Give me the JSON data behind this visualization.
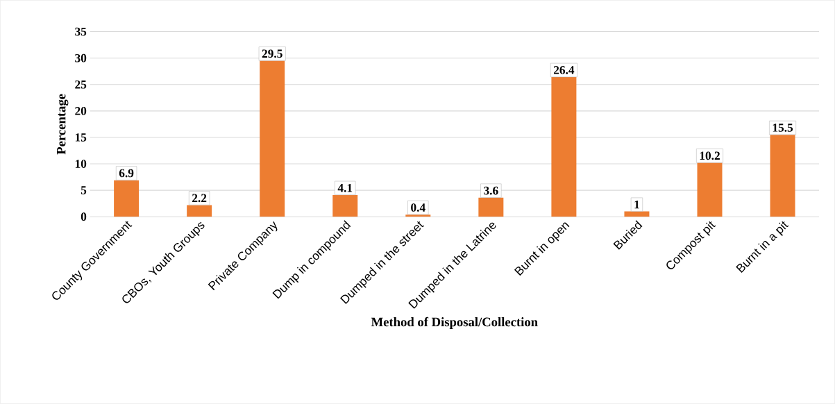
{
  "chart_data": {
    "type": "bar",
    "xlabel": "Method of Disposal/Collection",
    "ylabel": "Percentage",
    "categories": [
      "County Government",
      "CBOs, Youth Groups",
      "Private Company",
      "Dump in compound",
      "Dumped in the street",
      "Dumped in the Latrine",
      "Burnt in open",
      "Buried",
      "Compost pit",
      "Burnt in a pit"
    ],
    "values": [
      6.9,
      2.2,
      29.5,
      4.1,
      0.4,
      3.6,
      26.4,
      1,
      10.2,
      15.5
    ],
    "color": "#ed7d31",
    "ylim": [
      0,
      35
    ],
    "yticks": [
      0,
      5,
      10,
      15,
      20,
      25,
      30,
      35
    ],
    "grid": "y",
    "data_labels": true
  }
}
